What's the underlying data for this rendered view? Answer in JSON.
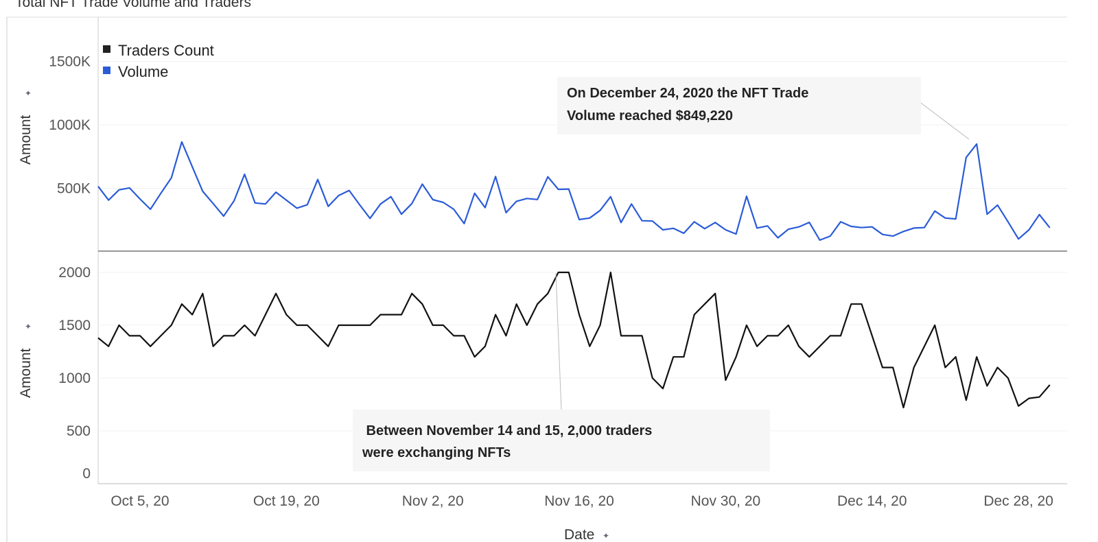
{
  "chart_data": [
    {
      "type": "line",
      "title": "Total NFT Trade Volume and Traders",
      "xlabel": "Date",
      "ylabel": "Amount",
      "x_start": "2020-10-01",
      "x_end": "2020-12-31",
      "x_tick_labels": [
        "Oct 5, 20",
        "Oct 19, 20",
        "Nov 2, 20",
        "Nov 16, 20",
        "Nov 30, 20",
        "Dec 14, 20",
        "Dec 28, 20"
      ],
      "x_tick_dates": [
        "2020-10-05",
        "2020-10-19",
        "2020-11-02",
        "2020-11-16",
        "2020-11-30",
        "2020-12-14",
        "2020-12-28"
      ],
      "legend": {
        "placement": "top-left",
        "entries": [
          {
            "name": "Traders Count",
            "color": "#222222"
          },
          {
            "name": "Volume",
            "color": "#2a5bd7"
          }
        ]
      },
      "grid": true,
      "panels": [
        {
          "series_name": "Volume",
          "unit": "K",
          "color": "#2a5bd7",
          "ylim": [
            0,
            1800
          ],
          "y_ticks": [
            500,
            1000,
            1500
          ],
          "y_tick_labels": [
            "500K",
            "1000K",
            "1500K"
          ],
          "values": [
            515,
            407,
            488,
            503,
            416,
            335,
            461,
            582,
            866,
            670,
            476,
            380,
            281,
            402,
            611,
            385,
            377,
            470,
            407,
            344,
            371,
            569,
            358,
            443,
            483,
            371,
            263,
            377,
            434,
            296,
            380,
            533,
            411,
            389,
            335,
            222,
            461,
            348,
            593,
            308,
            398,
            420,
            412,
            591,
            492,
            494,
            254,
            266,
            326,
            434,
            231,
            377,
            245,
            242,
            173,
            185,
            146,
            236,
            182,
            231,
            173,
            140,
            438,
            187,
            204,
            110,
            178,
            196,
            232,
            92,
            124,
            236,
            200,
            191,
            196,
            137,
            124,
            160,
            187,
            191,
            321,
            266,
            259,
            744,
            849,
            296,
            368,
            236,
            101,
            173,
            293,
            189
          ],
          "annotation": {
            "text_lines": [
              "On December 24, 2020 the NFT Trade",
              "Volume reached $849,220"
            ],
            "date": "2020-12-24",
            "value": 849.22
          }
        },
        {
          "series_name": "Traders Count",
          "color": "#111111",
          "ylim": [
            0,
            2000
          ],
          "y_ticks": [
            0,
            500,
            1000,
            1500,
            2000
          ],
          "y_tick_labels": [
            "0",
            "500",
            "1000",
            "1500",
            "2000"
          ],
          "values": [
            1380,
            1300,
            1500,
            1400,
            1400,
            1300,
            1400,
            1500,
            1700,
            1600,
            1800,
            1300,
            1400,
            1400,
            1500,
            1400,
            1600,
            1800,
            1600,
            1500,
            1500,
            1400,
            1300,
            1500,
            1500,
            1500,
            1500,
            1600,
            1600,
            1600,
            1800,
            1700,
            1500,
            1500,
            1400,
            1400,
            1200,
            1300,
            1600,
            1400,
            1700,
            1500,
            1700,
            1800,
            2000,
            2000,
            1600,
            1300,
            1500,
            2000,
            1400,
            1400,
            1400,
            1000,
            900,
            1200,
            1200,
            1600,
            1700,
            1800,
            980,
            1200,
            1500,
            1300,
            1400,
            1400,
            1500,
            1300,
            1200,
            1300,
            1400,
            1400,
            1700,
            1700,
            1400,
            1100,
            1100,
            720,
            1100,
            1300,
            1500,
            1100,
            1200,
            790,
            1200,
            925,
            1100,
            1000,
            735,
            808,
            820,
            935
          ],
          "annotation": {
            "text_lines": [
              " Between November 14 and 15, 2,000 traders",
              "were exchanging NFTs"
            ],
            "date": "2020-11-14",
            "value": 2000
          }
        }
      ]
    }
  ]
}
